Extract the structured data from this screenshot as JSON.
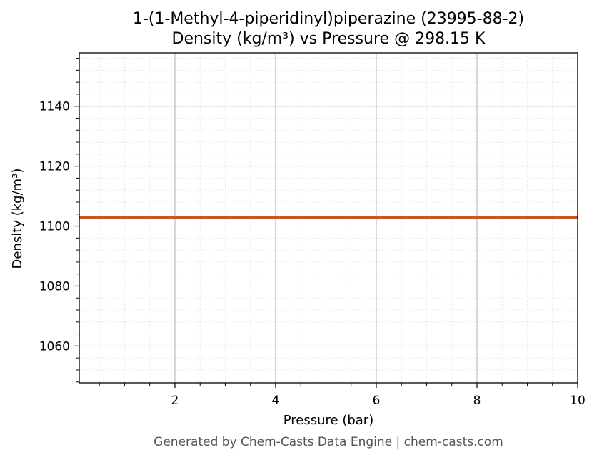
{
  "chart_data": {
    "type": "line",
    "title": "1-(1-Methyl-4-piperidinyl)piperazine (23995-88-2)",
    "subtitle": "Density (kg/m³) vs Pressure @ 298.15 K",
    "xlabel": "Pressure (bar)",
    "ylabel": "Density (kg/m³)",
    "xlim": [
      0.1,
      10
    ],
    "ylim": [
      1047.7,
      1157.8
    ],
    "x_ticks": [
      2,
      4,
      6,
      8,
      10
    ],
    "y_ticks": [
      1060,
      1080,
      1100,
      1120,
      1140
    ],
    "x_minor_step": 0.5,
    "y_minor_step": 4,
    "grid": true,
    "series": [
      {
        "x": [
          0.1,
          10
        ],
        "y": [
          1102.9,
          1102.9
        ],
        "color": "#cc5429"
      }
    ]
  },
  "footer": "Generated by Chem-Casts Data Engine | chem-casts.com"
}
